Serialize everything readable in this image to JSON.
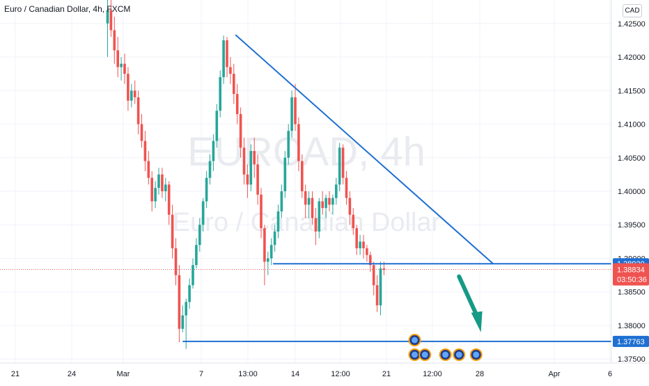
{
  "header": {
    "title": "Euro / Canadian Dollar, 4h, FXCM",
    "currency": "CAD"
  },
  "watermark": {
    "symbol": "EURCAD, 4h",
    "name": "Euro / Canadian Dollar"
  },
  "colors": {
    "up": "#26a69a",
    "down": "#ef5350",
    "trendline": "#1e6fd1",
    "arrow": "#149a86",
    "axis_text": "#131722",
    "grid": "#f0f3fa"
  },
  "chart_data": {
    "type": "candlestick",
    "title": "Euro / Canadian Dollar, 4h, FXCM",
    "ylim": [
      1.3715,
      1.4285
    ],
    "y_ticks": [
      "1.42500",
      "1.42000",
      "1.41500",
      "1.41000",
      "1.40500",
      "1.40000",
      "1.39500",
      "1.39000",
      "1.38500",
      "1.38000",
      "1.37500"
    ],
    "x_ticks": [
      {
        "label": "21",
        "t": 0
      },
      {
        "label": "24",
        "t": 14
      },
      {
        "label": "Mar",
        "t": 28
      },
      {
        "label": "7",
        "t": 45
      },
      {
        "label": "13:00",
        "t": 57
      },
      {
        "label": "14",
        "t": 70
      },
      {
        "label": "12:00",
        "t": 82
      },
      {
        "label": "21",
        "t": 95
      },
      {
        "label": "12:00",
        "t": 107
      },
      {
        "label": "28",
        "t": 120
      },
      {
        "label": "Apr",
        "t": 145
      },
      {
        "label": "6",
        "t": 158
      }
    ],
    "price_labels": [
      {
        "label": "1.38920",
        "value": 1.3892,
        "type": "level"
      },
      {
        "label": "1.38834",
        "value": 1.38834,
        "type": "last",
        "sub": "03:50:36"
      },
      {
        "label": "1.37763",
        "value": 1.37763,
        "type": "level"
      }
    ],
    "candles": [
      [
        1.425,
        1.4285,
        1.42,
        1.427
      ],
      [
        1.427,
        1.429,
        1.423,
        1.424
      ],
      [
        1.424,
        1.426,
        1.419,
        1.421
      ],
      [
        1.421,
        1.423,
        1.417,
        1.4185
      ],
      [
        1.4185,
        1.42,
        1.4165,
        1.419
      ],
      [
        1.419,
        1.4205,
        1.416,
        1.4175
      ],
      [
        1.4175,
        1.4185,
        1.412,
        1.4135
      ],
      [
        1.4135,
        1.416,
        1.4125,
        1.415
      ],
      [
        1.415,
        1.4165,
        1.413,
        1.414
      ],
      [
        1.414,
        1.415,
        1.4085,
        1.41
      ],
      [
        1.41,
        1.4115,
        1.4065,
        1.4075
      ],
      [
        1.4075,
        1.409,
        1.403,
        1.4045
      ],
      [
        1.4045,
        1.406,
        1.401,
        1.402
      ],
      [
        1.402,
        1.403,
        1.397,
        1.3985
      ],
      [
        1.3985,
        1.4015,
        1.3975,
        1.4005
      ],
      [
        1.4005,
        1.4035,
        1.3995,
        1.4025
      ],
      [
        1.4025,
        1.4035,
        1.399,
        1.4
      ],
      [
        1.4,
        1.402,
        1.3985,
        1.401
      ],
      [
        1.401,
        1.4015,
        1.395,
        1.3965
      ],
      [
        1.3965,
        1.398,
        1.39,
        1.3915
      ],
      [
        1.3915,
        1.393,
        1.386,
        1.3875
      ],
      [
        1.3875,
        1.389,
        1.3775,
        1.3795
      ],
      [
        1.3795,
        1.383,
        1.379,
        1.3815
      ],
      [
        1.3815,
        1.384,
        1.3765,
        1.3835
      ],
      [
        1.3835,
        1.387,
        1.3825,
        1.386
      ],
      [
        1.386,
        1.39,
        1.3855,
        1.389
      ],
      [
        1.389,
        1.393,
        1.3885,
        1.392
      ],
      [
        1.392,
        1.396,
        1.391,
        1.395
      ],
      [
        1.395,
        1.399,
        1.394,
        1.3985
      ],
      [
        1.3985,
        1.403,
        1.3975,
        1.402
      ],
      [
        1.402,
        1.4055,
        1.401,
        1.4045
      ],
      [
        1.4045,
        1.4085,
        1.403,
        1.4075
      ],
      [
        1.4075,
        1.413,
        1.4065,
        1.412
      ],
      [
        1.412,
        1.418,
        1.411,
        1.417
      ],
      [
        1.417,
        1.4232,
        1.416,
        1.4225
      ],
      [
        1.4225,
        1.423,
        1.417,
        1.4185
      ],
      [
        1.4185,
        1.42,
        1.416,
        1.4175
      ],
      [
        1.4175,
        1.419,
        1.413,
        1.4145
      ],
      [
        1.4145,
        1.416,
        1.41,
        1.4115
      ],
      [
        1.4115,
        1.4125,
        1.405,
        1.4065
      ],
      [
        1.4065,
        1.408,
        1.401,
        1.4025
      ],
      [
        1.4025,
        1.404,
        1.399,
        1.401
      ],
      [
        1.401,
        1.407,
        1.4,
        1.406
      ],
      [
        1.406,
        1.408,
        1.402,
        1.404
      ],
      [
        1.404,
        1.4055,
        1.398,
        1.3995
      ],
      [
        1.3995,
        1.4005,
        1.393,
        1.3945
      ],
      [
        1.3945,
        1.395,
        1.386,
        1.3895
      ],
      [
        1.3895,
        1.391,
        1.3875,
        1.39
      ],
      [
        1.39,
        1.393,
        1.389,
        1.392
      ],
      [
        1.392,
        1.395,
        1.391,
        1.394
      ],
      [
        1.394,
        1.398,
        1.393,
        1.397
      ],
      [
        1.397,
        1.401,
        1.396,
        1.4
      ],
      [
        1.4,
        1.406,
        1.399,
        1.405
      ],
      [
        1.405,
        1.41,
        1.404,
        1.409
      ],
      [
        1.409,
        1.415,
        1.408,
        1.414
      ],
      [
        1.414,
        1.416,
        1.409,
        1.41
      ],
      [
        1.41,
        1.411,
        1.403,
        1.4045
      ],
      [
        1.4045,
        1.4055,
        1.399,
        1.4
      ],
      [
        1.4,
        1.401,
        1.396,
        1.398
      ],
      [
        1.398,
        1.4,
        1.396,
        1.399
      ],
      [
        1.399,
        1.4,
        1.395,
        1.396
      ],
      [
        1.396,
        1.3975,
        1.392,
        1.394
      ],
      [
        1.394,
        1.399,
        1.393,
        1.3985
      ],
      [
        1.3985,
        1.4,
        1.3965,
        1.3975
      ],
      [
        1.3975,
        1.3995,
        1.396,
        1.399
      ],
      [
        1.399,
        1.4,
        1.397,
        1.398
      ],
      [
        1.398,
        1.3995,
        1.3965,
        1.399
      ],
      [
        1.399,
        1.402,
        1.398,
        1.401
      ],
      [
        1.401,
        1.4072,
        1.4,
        1.4065
      ],
      [
        1.4065,
        1.407,
        1.401,
        1.402
      ],
      [
        1.402,
        1.403,
        1.398,
        1.399
      ],
      [
        1.399,
        1.4,
        1.395,
        1.3965
      ],
      [
        1.3965,
        1.3975,
        1.3935,
        1.3945
      ],
      [
        1.3945,
        1.395,
        1.3905,
        1.3915
      ],
      [
        1.3915,
        1.3935,
        1.3905,
        1.3925
      ],
      [
        1.3925,
        1.3935,
        1.39,
        1.3915
      ],
      [
        1.3915,
        1.392,
        1.3895,
        1.3905
      ],
      [
        1.3905,
        1.391,
        1.388,
        1.389
      ],
      [
        1.389,
        1.3895,
        1.3845,
        1.386
      ],
      [
        1.386,
        1.3875,
        1.382,
        1.383
      ],
      [
        1.383,
        1.3895,
        1.3815,
        1.3885
      ],
      [
        1.3885,
        1.3895,
        1.3875,
        1.3883
      ]
    ],
    "lines": [
      {
        "name": "trendline",
        "x1": 37.5,
        "y1": 1.4233,
        "x2": 113,
        "y2": 1.3892,
        "color": "#1e6fd1"
      },
      {
        "name": "support",
        "x1": 48.5,
        "y1": 1.3892,
        "x2": 999,
        "y2": 1.3892,
        "color": "#1e6fd1"
      },
      {
        "name": "low-level",
        "x1": 22,
        "y1": 1.37763,
        "x2": 999,
        "y2": 1.37763,
        "color": "#1e6fd1"
      }
    ],
    "arrow": {
      "x1": 103,
      "y1": 1.3873,
      "x2": 109,
      "y2": 1.379
    },
    "events": [
      {
        "t": 90,
        "row": 0
      },
      {
        "t": 90,
        "row": 1
      },
      {
        "t": 93,
        "row": 1
      },
      {
        "t": 99,
        "row": 1
      },
      {
        "t": 103,
        "row": 1
      },
      {
        "t": 108,
        "row": 1
      }
    ]
  }
}
